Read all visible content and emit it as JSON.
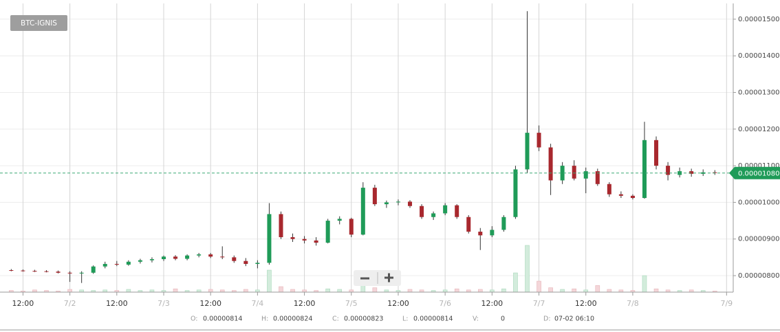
{
  "chart_data": {
    "type": "candlestick",
    "title": "BTC-IGNIS",
    "x": [
      9,
      12,
      15,
      18,
      21,
      24,
      27,
      30,
      33,
      36,
      39,
      42,
      45,
      48,
      51,
      54,
      57,
      60,
      63,
      66,
      69,
      72,
      75,
      78,
      81,
      84,
      87,
      90,
      93,
      96,
      99,
      102,
      105,
      108,
      111,
      114,
      117,
      120,
      123,
      126,
      129,
      132,
      135,
      138,
      141,
      144,
      147,
      150,
      153,
      156,
      159,
      162,
      165,
      168,
      171,
      174,
      177,
      180,
      183,
      186,
      189
    ],
    "open": [
      8.15e-06,
      8.14e-06,
      8.13e-06,
      8.12e-06,
      8.11e-06,
      8.08e-06,
      8.06e-06,
      8.08e-06,
      8.25e-06,
      8.32e-06,
      8.3e-06,
      8.38e-06,
      8.42e-06,
      8.45e-06,
      8.52e-06,
      8.46e-06,
      8.55e-06,
      8.58e-06,
      8.52e-06,
      8.5e-06,
      8.4e-06,
      8.32e-06,
      8.35e-06,
      9.68e-06,
      9.05e-06,
      9e-06,
      8.96e-06,
      8.9e-06,
      9.5e-06,
      9.55e-06,
      9.12e-06,
      1.04e-05,
      9.95e-06,
      1e-05,
      1.002e-05,
      9.9e-06,
      9.6e-06,
      9.7e-06,
      9.92e-06,
      9.6e-06,
      9.2e-06,
      9.1e-06,
      9.25e-06,
      9.6e-06,
      1.09e-05,
      1.19e-05,
      1.15e-05,
      1.06e-05,
      1.1e-05,
      1.065e-05,
      1.085e-05,
      1.05e-05,
      1.022e-05,
      1.018e-05,
      1.012e-05,
      1.17e-05,
      1.1e-05,
      1.075e-05,
      1.085e-05,
      1.078e-05,
      1.082e-05
    ],
    "high": [
      8.18e-06,
      8.17e-06,
      8.16e-06,
      8.15e-06,
      8.14e-06,
      8.12e-06,
      8.12e-06,
      8.28e-06,
      8.38e-06,
      8.4e-06,
      8.42e-06,
      8.46e-06,
      8.5e-06,
      8.55e-06,
      8.56e-06,
      8.58e-06,
      8.62e-06,
      8.62e-06,
      8.8e-06,
      8.55e-06,
      8.48e-06,
      8.42e-06,
      9.98e-06,
      9.75e-06,
      9.15e-06,
      9.08e-06,
      9.05e-06,
      9.55e-06,
      9.62e-06,
      9.58e-06,
      1.055e-05,
      1.048e-05,
      1.005e-05,
      1.008e-05,
      1.006e-05,
      9.95e-06,
      9.75e-06,
      9.98e-06,
      9.95e-06,
      9.65e-06,
      9.3e-06,
      9.35e-06,
      9.65e-06,
      1.1e-05,
      1.522e-05,
      1.21e-05,
      1.16e-05,
      1.11e-05,
      1.115e-05,
      1.095e-05,
      1.092e-05,
      1.055e-05,
      1.03e-05,
      1.022e-05,
      1.22e-05,
      1.18e-05,
      1.11e-05,
      1.095e-05,
      1.092e-05,
      1.09e-05,
      1.088e-05
    ],
    "low": [
      8.12e-06,
      8.11e-06,
      8.1e-06,
      8.09e-06,
      8.06e-06,
      7.83e-06,
      7.8e-06,
      8.05e-06,
      8.2e-06,
      8.26e-06,
      8.27e-06,
      8.33e-06,
      8.36e-06,
      8.4e-06,
      8.42e-06,
      8.42e-06,
      8.5e-06,
      8.48e-06,
      8.45e-06,
      8.35e-06,
      8.26e-06,
      8.2e-06,
      8.3e-06,
      9e-06,
      8.92e-06,
      8.88e-06,
      8.82e-06,
      8.88e-06,
      9.4e-06,
      9.05e-06,
      9.1e-06,
      9.9e-06,
      9.85e-06,
      9.92e-06,
      9.85e-06,
      9.55e-06,
      9.52e-06,
      9.65e-06,
      9.55e-06,
      9.15e-06,
      8.7e-06,
      9.05e-06,
      9.2e-06,
      9.55e-06,
      1.08e-05,
      1.14e-05,
      1.02e-05,
      1.05e-05,
      1.06e-05,
      1.025e-05,
      1.045e-05,
      1.015e-05,
      1.012e-05,
      1.008e-05,
      1.01e-05,
      1.09e-05,
      1.06e-05,
      1.068e-05,
      1.07e-05,
      1.072e-05,
      1.075e-05
    ],
    "close": [
      8.14e-06,
      8.13e-06,
      8.12e-06,
      8.11e-06,
      8.08e-06,
      8.06e-06,
      8.08e-06,
      8.25e-06,
      8.32e-06,
      8.3e-06,
      8.38e-06,
      8.42e-06,
      8.45e-06,
      8.52e-06,
      8.46e-06,
      8.55e-06,
      8.58e-06,
      8.52e-06,
      8.5e-06,
      8.4e-06,
      8.32e-06,
      8.35e-06,
      9.68e-06,
      9.05e-06,
      9e-06,
      8.96e-06,
      8.9e-06,
      9.5e-06,
      9.55e-06,
      9.12e-06,
      1.04e-05,
      9.95e-06,
      1e-05,
      1.002e-05,
      9.9e-06,
      9.6e-06,
      9.7e-06,
      9.92e-06,
      9.6e-06,
      9.2e-06,
      9.1e-06,
      9.25e-06,
      9.6e-06,
      1.09e-05,
      1.19e-05,
      1.15e-05,
      1.06e-05,
      1.1e-05,
      1.065e-05,
      1.085e-05,
      1.05e-05,
      1.022e-05,
      1.018e-05,
      1.012e-05,
      1.17e-05,
      1.1e-05,
      1.075e-05,
      1.085e-05,
      1.078e-05,
      1.082e-05,
      1.08e-05
    ],
    "volume": [
      3,
      2,
      4,
      3,
      2,
      5,
      4,
      3,
      4,
      3,
      5,
      3,
      4,
      3,
      6,
      3,
      4,
      5,
      4,
      3,
      5,
      4,
      40,
      10,
      5,
      4,
      3,
      6,
      5,
      4,
      28,
      8,
      4,
      3,
      5,
      4,
      3,
      4,
      6,
      4,
      5,
      4,
      6,
      35,
      85,
      20,
      8,
      5,
      6,
      4,
      12,
      5,
      4,
      3,
      30,
      6,
      4,
      3,
      4,
      3,
      2
    ],
    "up_color": "#1f9b58",
    "down_color": "#a8282e",
    "volume_up_color": "#d3ecdc",
    "volume_down_color": "#f4d6d9",
    "xlim": [
      7,
      193
    ],
    "xticks": [
      {
        "value": 12,
        "label": "12:00"
      },
      {
        "value": 24,
        "label": "7/2"
      },
      {
        "value": 36,
        "label": "12:00"
      },
      {
        "value": 48,
        "label": "7/3"
      },
      {
        "value": 60,
        "label": "12:00"
      },
      {
        "value": 72,
        "label": "7/4"
      },
      {
        "value": 84,
        "label": "12:00"
      },
      {
        "value": 96,
        "label": "7/5"
      },
      {
        "value": 108,
        "label": "12:00"
      },
      {
        "value": 120,
        "label": "7/6"
      },
      {
        "value": 132,
        "label": "12:00"
      },
      {
        "value": 144,
        "label": "7/7"
      },
      {
        "value": 156,
        "label": "12:00"
      },
      {
        "value": 168,
        "label": "7/8"
      },
      {
        "value": 192,
        "label": "7/9"
      }
    ],
    "ylim": [
      7.55e-06,
      1.543e-05
    ],
    "yticks": [
      {
        "value": 8e-06,
        "label": "0.00000800"
      },
      {
        "value": 9e-06,
        "label": "0.00000900"
      },
      {
        "value": 1e-05,
        "label": "0.00001000"
      },
      {
        "value": 1.1e-05,
        "label": "0.00001100"
      },
      {
        "value": 1.2e-05,
        "label": "0.00001200"
      },
      {
        "value": 1.3e-05,
        "label": "0.00001300"
      },
      {
        "value": 1.4e-05,
        "label": "0.00001400"
      },
      {
        "value": 1.5e-05,
        "label": "0.00001500"
      }
    ],
    "y2lim": [
      0,
      100
    ],
    "last_price": {
      "value": 1.08e-05,
      "label": "0.00001080"
    },
    "grid": true
  },
  "info": {
    "open_label": "O:",
    "open": "0.00000814",
    "high_label": "H:",
    "high": "0.00000824",
    "close_label": "C:",
    "close": "0.00000823",
    "low_label": "L:",
    "low": "0.00000814",
    "volume_label": "V:",
    "volume": "0",
    "date_label": "D:",
    "date": "07-02 06:10"
  }
}
